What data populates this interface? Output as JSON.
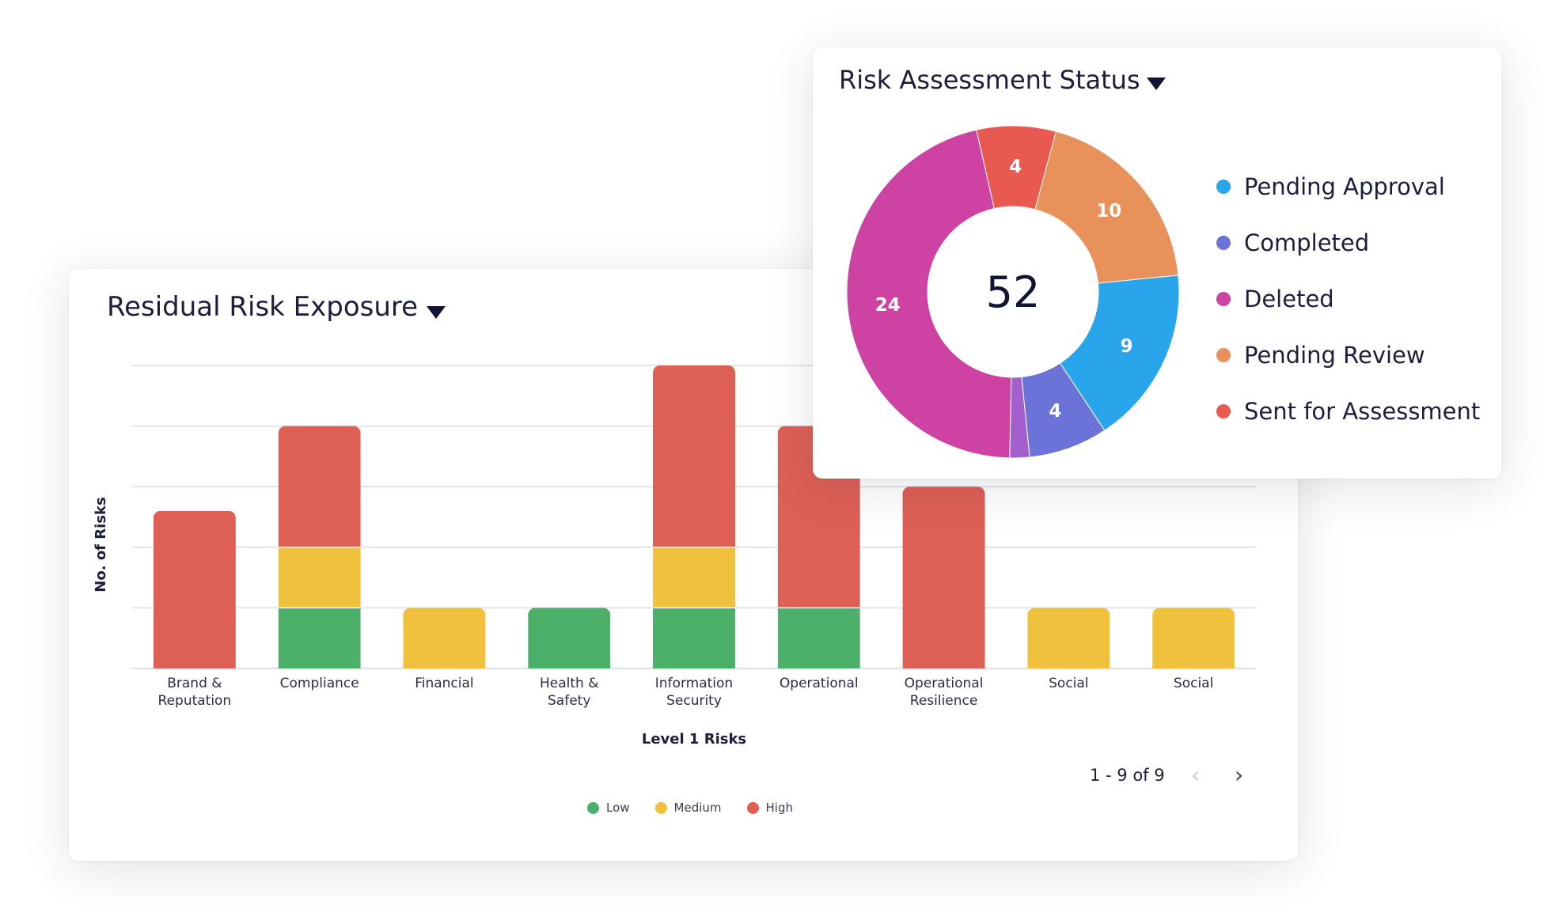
{
  "bar_card": {
    "title": "Residual Risk Exposure",
    "pager": {
      "text": "1 - 9 of 9",
      "prev": "‹",
      "next": "›"
    },
    "legend": [
      {
        "label": "Low",
        "color": "#4caf6a"
      },
      {
        "label": "Medium",
        "color": "#f0c13c"
      },
      {
        "label": "High",
        "color": "#de6055"
      }
    ]
  },
  "donut_card": {
    "title": "Risk Assessment Status"
  },
  "chart_data": [
    {
      "type": "bar",
      "stacked": true,
      "title": "Residual Risk Exposure",
      "xlabel": "Level 1 Risks",
      "ylabel": "No. of Risks",
      "ylim": [
        0,
        5
      ],
      "grid": true,
      "y_tick_labels": "hidden",
      "legend_position": "bottom",
      "categories": [
        [
          "Brand &",
          "Reputation"
        ],
        [
          "Compliance"
        ],
        [
          "Financial"
        ],
        [
          "Health &",
          "Safety"
        ],
        [
          "Information",
          "Security"
        ],
        [
          "Operational"
        ],
        [
          "Operational",
          "Resilience"
        ],
        [
          "Social"
        ],
        [
          "Social"
        ]
      ],
      "series": [
        {
          "name": "Low",
          "color": "#4caf6a",
          "values": [
            0,
            1,
            0,
            1,
            1,
            1,
            0,
            0,
            0
          ]
        },
        {
          "name": "Medium",
          "color": "#f0c13c",
          "values": [
            0,
            1,
            1,
            0,
            1,
            0,
            0,
            1,
            1
          ]
        },
        {
          "name": "High",
          "color": "#de6055",
          "values": [
            2.6,
            2,
            0,
            0,
            3,
            3,
            3,
            0,
            0
          ]
        }
      ]
    },
    {
      "type": "pie",
      "donut": true,
      "title": "Risk Assessment Status",
      "center_label": "52",
      "legend_position": "right",
      "slices": [
        {
          "name": "Pending Review",
          "value": 10,
          "color": "#e8915a",
          "label": "10"
        },
        {
          "name": "Pending Approval",
          "value": 9,
          "color": "#29a5ec",
          "label": "9"
        },
        {
          "name": "Completed",
          "value": 4,
          "color": "#6b72d8",
          "label": "4"
        },
        {
          "value": 1,
          "color": "#a35fce",
          "label": ""
        },
        {
          "name": "Deleted",
          "value": 24,
          "color": "#cd42a3",
          "label": "24"
        },
        {
          "name": "Sent for Assessment",
          "value": 4,
          "color": "#e85a4f",
          "label": "4"
        }
      ],
      "legend": [
        {
          "label": "Pending Approval",
          "color": "#29a5ec"
        },
        {
          "label": "Completed",
          "color": "#6b72d8"
        },
        {
          "label": "Deleted",
          "color": "#cd42a3"
        },
        {
          "label": "Pending Review",
          "color": "#e8915a"
        },
        {
          "label": "Sent for Assessment",
          "color": "#e85a4f"
        }
      ]
    }
  ]
}
